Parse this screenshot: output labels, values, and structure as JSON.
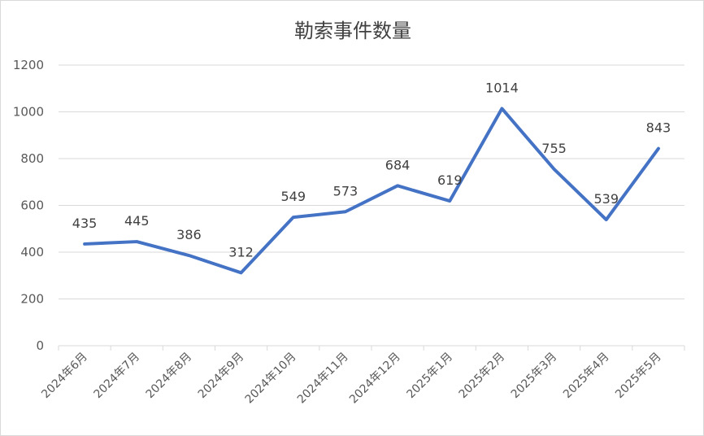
{
  "chart_data": {
    "type": "line",
    "title": "勒索事件数量",
    "xlabel": "",
    "ylabel": "",
    "categories": [
      "2024年6月",
      "2024年7月",
      "2024年8月",
      "2024年9月",
      "2024年10月",
      "2024年11月",
      "2024年12月",
      "2025年1月",
      "2025年2月",
      "2025年3月",
      "2025年4月",
      "2025年5月"
    ],
    "series": [
      {
        "values": [
          435,
          445,
          386,
          312,
          549,
          573,
          684,
          619,
          1014,
          755,
          539,
          843
        ]
      }
    ],
    "ylim": [
      0,
      1200
    ],
    "yticks": [
      0,
      200,
      400,
      600,
      800,
      1000,
      1200
    ],
    "grid": true,
    "legend": "none",
    "line_color": "#4472C4"
  }
}
